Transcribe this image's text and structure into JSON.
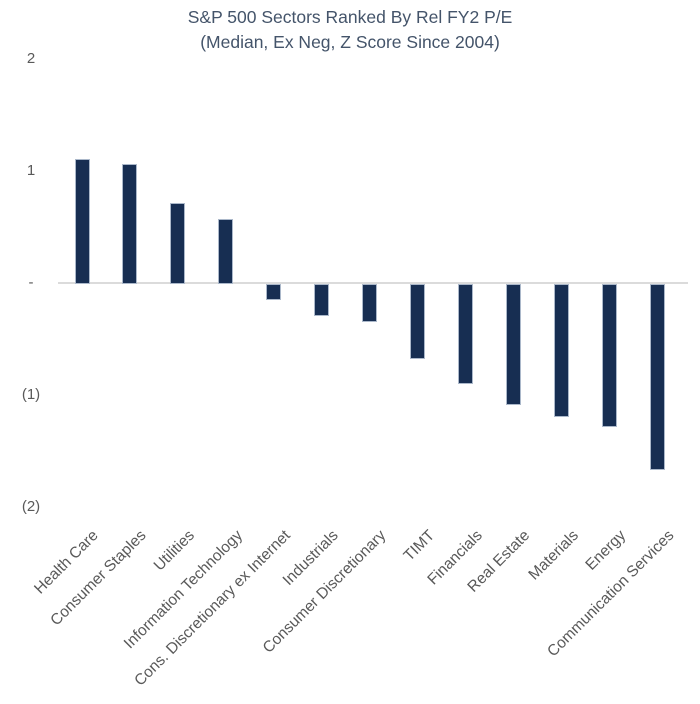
{
  "chart_data": {
    "type": "bar",
    "title": "S&P 500 Sectors Ranked By Rel FY2 P/E",
    "subtitle": "(Median, Ex Neg, Z Score Since 2004)",
    "categories": [
      "Health Care",
      "Consumer Staples",
      "Utilities",
      "Information Technology",
      "Cons. Discretionary ex Internet",
      "Industrials",
      "Consumer Discretionary",
      "TIMT",
      "Financials",
      "Real Estate",
      "Materials",
      "Energy",
      "Communication Services"
    ],
    "values": [
      1.11,
      1.06,
      0.71,
      0.57,
      -0.14,
      -0.29,
      -0.34,
      -0.67,
      -0.89,
      -1.08,
      -1.19,
      -1.28,
      -1.66
    ],
    "xlabel": "",
    "ylabel": "",
    "ylim": [
      -2,
      2
    ],
    "yticks": [
      {
        "value": 2,
        "label": "2"
      },
      {
        "value": 1,
        "label": "1"
      },
      {
        "value": 0,
        "label": "-"
      },
      {
        "value": -1,
        "label": "(1)"
      },
      {
        "value": -2,
        "label": "(2)"
      }
    ],
    "grid": "zero-line-only",
    "legend": "none",
    "colors": {
      "bar_fill": "#172E52",
      "bar_border": "#ABB8CA",
      "gridline": "#DBDBDB",
      "tick_label": "#595959",
      "category_label": "#595959",
      "title": "#44546A",
      "background": "#FFFFFF"
    }
  }
}
